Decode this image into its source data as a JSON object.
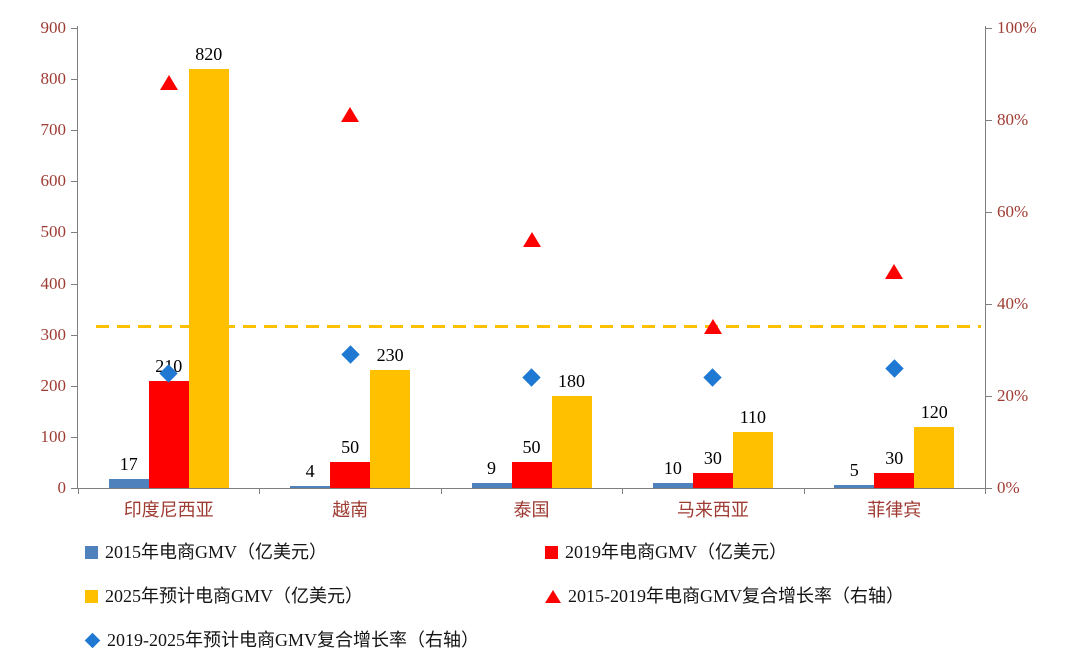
{
  "chart_data": {
    "type": "bar+scatter combo",
    "categories": [
      "印度尼西亚",
      "越南",
      "泰国",
      "马来西亚",
      "菲律宾"
    ],
    "series": [
      {
        "key": "gmv2015",
        "name": "2015年电商GMV（亿美元）",
        "type": "bar",
        "marker": "square",
        "axis": "left",
        "color": "#4f81bd",
        "values": [
          17,
          4,
          9,
          10,
          5
        ]
      },
      {
        "key": "gmv2019",
        "name": "2019年电商GMV（亿美元）",
        "type": "bar",
        "marker": "square",
        "axis": "left",
        "color": "#fe0000",
        "values": [
          210,
          50,
          50,
          30,
          30
        ]
      },
      {
        "key": "gmv2025",
        "name": "2025年预计电商GMV（亿美元）",
        "type": "bar",
        "marker": "square",
        "axis": "left",
        "color": "#ffc000",
        "values": [
          820,
          230,
          180,
          110,
          120
        ]
      },
      {
        "key": "cagr1519",
        "name": "2015-2019年电商GMV复合增长率（右轴）",
        "type": "scatter",
        "marker": "triangle",
        "axis": "right",
        "color": "#fe0000",
        "values": [
          88,
          81,
          54,
          35,
          47
        ]
      },
      {
        "key": "cagr1925",
        "name": "2019-2025年预计电商GMV复合增长率（右轴）",
        "type": "scatter",
        "marker": "diamond",
        "axis": "right",
        "color": "#1f78d1",
        "values": [
          25,
          29,
          24,
          24,
          26
        ]
      }
    ],
    "left_axis": {
      "min": 0,
      "max": 900,
      "step": 100,
      "tick_labels": [
        "0",
        "100",
        "200",
        "300",
        "400",
        "500",
        "600",
        "700",
        "800",
        "900"
      ]
    },
    "right_axis": {
      "min": 0,
      "max": 100,
      "step": 20,
      "suffix": "%",
      "tick_labels": [
        "0%",
        "20%",
        "40%",
        "60%",
        "80%",
        "100%"
      ]
    },
    "dashed_line": {
      "value_right": 35,
      "color": "#ffc000"
    },
    "bar_labels": true,
    "legend_position": "bottom",
    "grid": false,
    "colors": {
      "axis_text": "#9e3b32",
      "axis_line": "#7f7f7f",
      "bar_2015": "#4f81bd",
      "bar_2019": "#fe0000",
      "bar_2025": "#ffc000",
      "triangle": "#fe0000",
      "diamond": "#1f78d1",
      "dashed": "#ffc000",
      "label_text": "#000000"
    }
  }
}
